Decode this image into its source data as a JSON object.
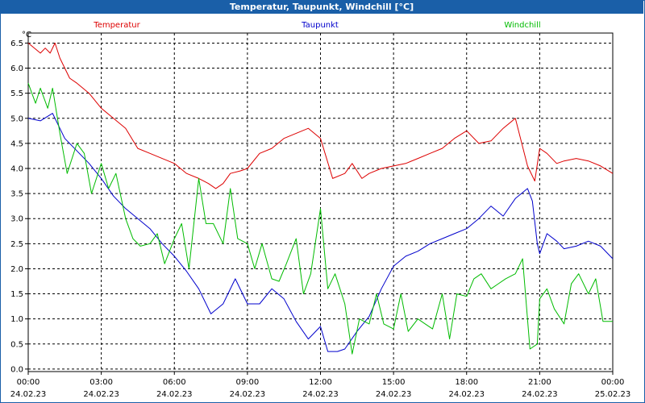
{
  "chart_data": {
    "type": "line",
    "title": "Temperatur, Taupunkt, Windchill [°C]",
    "ylabel": "°C",
    "ylim": [
      -0.05,
      6.7
    ],
    "y_ticks": [
      "0.0",
      "0.5",
      "1.0",
      "1.5",
      "2.0",
      "2.5",
      "3.0",
      "3.5",
      "4.0",
      "4.5",
      "5.0",
      "5.5",
      "6.0",
      "6.5"
    ],
    "y_tick_values": [
      0,
      0.5,
      1,
      1.5,
      2,
      2.5,
      3,
      3.5,
      4,
      4.5,
      5,
      5.5,
      6,
      6.5
    ],
    "xlim_hours": [
      0,
      24
    ],
    "x_tick_hours": [
      0,
      3,
      6,
      9,
      12,
      15,
      18,
      21,
      24
    ],
    "x_ticks": [
      {
        "time": "00:00",
        "date": "24.02.23"
      },
      {
        "time": "03:00",
        "date": "24.02.23"
      },
      {
        "time": "06:00",
        "date": "24.02.23"
      },
      {
        "time": "09:00",
        "date": "24.02.23"
      },
      {
        "time": "12:00",
        "date": "24.02.23"
      },
      {
        "time": "15:00",
        "date": "24.02.23"
      },
      {
        "time": "18:00",
        "date": "24.02.23"
      },
      {
        "time": "21:00",
        "date": "24.02.23"
      },
      {
        "time": "00:00",
        "date": "25.02.23"
      }
    ],
    "grid": true,
    "series": [
      {
        "name": "Temperatur",
        "color": "#dd0000",
        "x": [
          0,
          0.5,
          0.7,
          0.9,
          1.1,
          1.3,
          1.7,
          2.0,
          2.5,
          3.0,
          3.5,
          4.0,
          4.5,
          5.0,
          5.5,
          6.0,
          6.5,
          7.0,
          7.4,
          7.7,
          8.0,
          8.3,
          8.7,
          9.0,
          9.5,
          10.0,
          10.5,
          11.0,
          11.5,
          12.0,
          12.5,
          13.0,
          13.3,
          13.7,
          14.0,
          14.5,
          15.0,
          15.5,
          16.0,
          16.5,
          17.0,
          17.5,
          18.0,
          18.5,
          19.0,
          19.5,
          20.0,
          20.5,
          20.8,
          21.0,
          21.3,
          21.7,
          22.0,
          22.5,
          23.0,
          23.5,
          24.0
        ],
        "values": [
          6.5,
          6.3,
          6.4,
          6.3,
          6.5,
          6.2,
          5.8,
          5.7,
          5.5,
          5.2,
          5.0,
          4.8,
          4.4,
          4.3,
          4.2,
          4.1,
          3.9,
          3.8,
          3.7,
          3.6,
          3.7,
          3.9,
          3.95,
          4.0,
          4.3,
          4.4,
          4.6,
          4.7,
          4.8,
          4.6,
          3.8,
          3.9,
          4.1,
          3.8,
          3.9,
          4.0,
          4.05,
          4.1,
          4.2,
          4.3,
          4.4,
          4.6,
          4.75,
          4.5,
          4.55,
          4.8,
          5.0,
          4.05,
          3.75,
          4.4,
          4.3,
          4.1,
          4.15,
          4.2,
          4.15,
          4.05,
          3.9
        ]
      },
      {
        "name": "Taupunkt",
        "color": "#0000cc",
        "x": [
          0,
          0.5,
          1.0,
          1.5,
          2.0,
          2.5,
          3.0,
          3.5,
          4.0,
          4.5,
          5.0,
          5.5,
          6.0,
          6.5,
          7.0,
          7.5,
          8.0,
          8.5,
          9.0,
          9.5,
          10.0,
          10.5,
          11.0,
          11.5,
          12.0,
          12.3,
          12.7,
          13.0,
          13.5,
          14.0,
          14.5,
          15.0,
          15.5,
          16.0,
          16.5,
          17.0,
          17.5,
          18.0,
          18.5,
          19.0,
          19.5,
          20.0,
          20.5,
          20.7,
          20.9,
          21.0,
          21.3,
          21.7,
          22.0,
          22.5,
          23.0,
          23.5,
          24.0
        ],
        "values": [
          5.0,
          4.95,
          5.1,
          4.6,
          4.35,
          4.1,
          3.8,
          3.45,
          3.2,
          3.0,
          2.8,
          2.5,
          2.25,
          1.95,
          1.6,
          1.1,
          1.3,
          1.8,
          1.3,
          1.3,
          1.6,
          1.4,
          0.95,
          0.6,
          0.85,
          0.35,
          0.35,
          0.4,
          0.75,
          1.05,
          1.6,
          2.05,
          2.25,
          2.35,
          2.5,
          2.6,
          2.7,
          2.8,
          3.0,
          3.25,
          3.05,
          3.4,
          3.6,
          3.35,
          2.5,
          2.3,
          2.7,
          2.55,
          2.4,
          2.45,
          2.55,
          2.45,
          2.2
        ]
      },
      {
        "name": "Windchill",
        "color": "#00bb00",
        "x": [
          0,
          0.3,
          0.5,
          0.8,
          1.0,
          1.3,
          1.6,
          2.0,
          2.3,
          2.6,
          3.0,
          3.3,
          3.6,
          4.0,
          4.3,
          4.6,
          5.0,
          5.3,
          5.6,
          6.0,
          6.3,
          6.6,
          7.0,
          7.3,
          7.6,
          8.0,
          8.3,
          8.6,
          9.0,
          9.3,
          9.6,
          10.0,
          10.3,
          10.6,
          11.0,
          11.3,
          11.6,
          12.0,
          12.3,
          12.6,
          13.0,
          13.3,
          13.6,
          14.0,
          14.3,
          14.6,
          15.0,
          15.3,
          15.6,
          16.0,
          16.3,
          16.6,
          17.0,
          17.3,
          17.6,
          18.0,
          18.3,
          18.6,
          19.0,
          19.3,
          19.6,
          20.0,
          20.3,
          20.6,
          20.9,
          21.0,
          21.3,
          21.6,
          22.0,
          22.3,
          22.6,
          23.0,
          23.3,
          23.6,
          24.0
        ],
        "values": [
          5.7,
          5.3,
          5.6,
          5.2,
          5.6,
          4.7,
          3.9,
          4.5,
          4.3,
          3.5,
          4.1,
          3.6,
          3.9,
          3.0,
          2.6,
          2.45,
          2.5,
          2.7,
          2.1,
          2.6,
          2.9,
          2.0,
          3.8,
          2.9,
          2.9,
          2.5,
          3.6,
          2.6,
          2.5,
          2.0,
          2.5,
          1.8,
          1.75,
          2.1,
          2.6,
          1.5,
          1.9,
          3.2,
          1.6,
          1.9,
          1.3,
          0.3,
          1.0,
          0.9,
          1.5,
          0.9,
          0.8,
          1.5,
          0.75,
          1.0,
          0.9,
          0.8,
          1.5,
          0.6,
          1.5,
          1.45,
          1.8,
          1.9,
          1.6,
          1.7,
          1.8,
          1.9,
          2.2,
          0.4,
          0.5,
          1.4,
          1.6,
          1.2,
          0.9,
          1.7,
          1.9,
          1.5,
          1.8,
          0.95,
          0.95
        ]
      }
    ]
  }
}
